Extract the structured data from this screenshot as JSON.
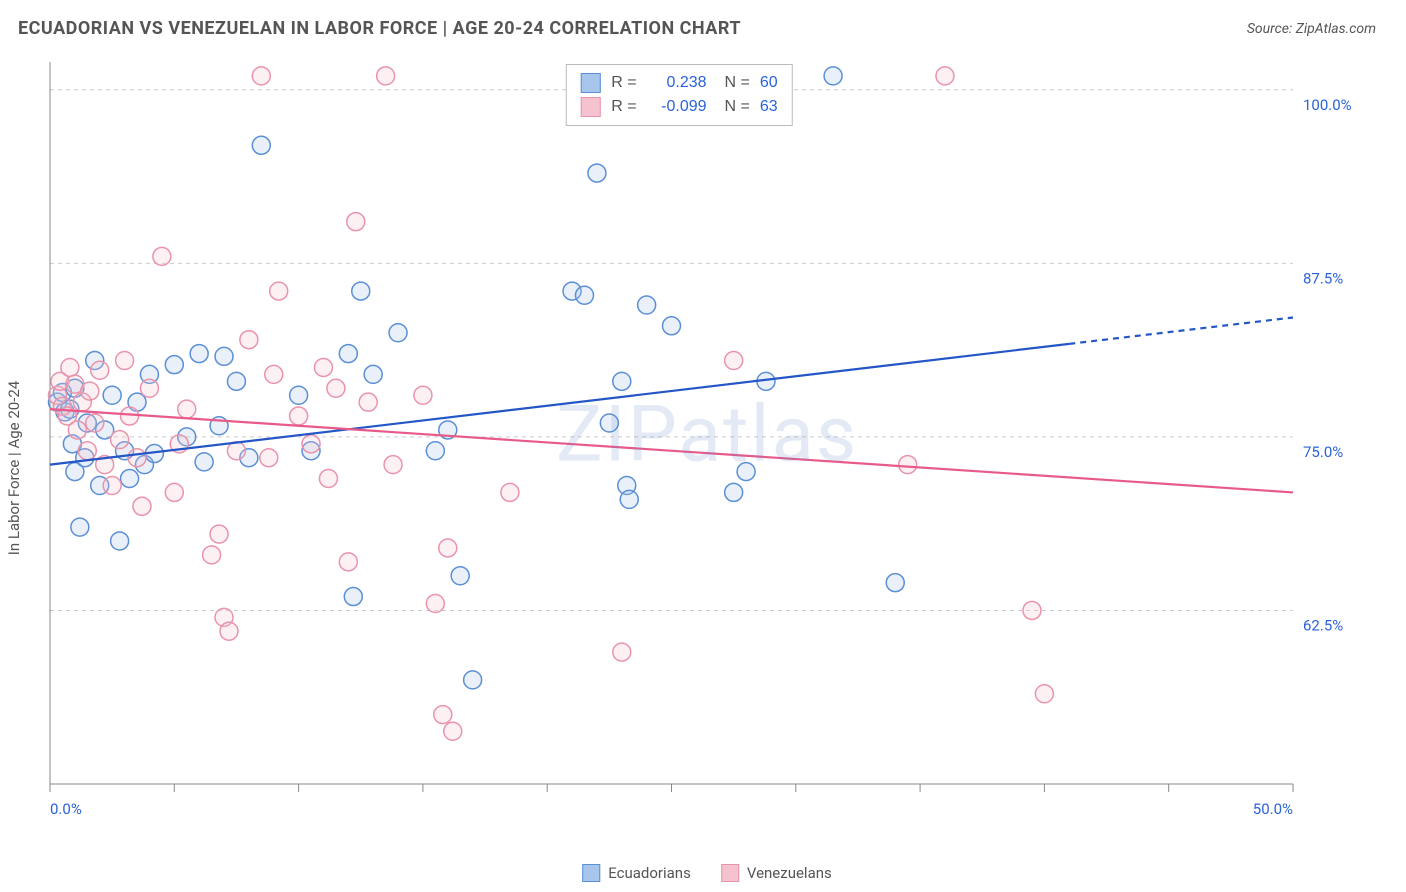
{
  "title": "ECUADORIAN VS VENEZUELAN IN LABOR FORCE | AGE 20-24 CORRELATION CHART",
  "source": "Source: ZipAtlas.com",
  "ylabel": "In Labor Force | Age 20-24",
  "watermark": "ZIPatlas",
  "chart": {
    "type": "scatter-correlation",
    "xlim": [
      0,
      50
    ],
    "ylim": [
      50,
      102
    ],
    "x_ticks": [
      0,
      5,
      10,
      15,
      20,
      25,
      30,
      35,
      40,
      45,
      50
    ],
    "x_tick_labels": {
      "0": "0.0%",
      "50": "50.0%"
    },
    "y_gridlines": [
      62.5,
      75.0,
      87.5,
      100.0
    ],
    "y_tick_labels": [
      "62.5%",
      "75.0%",
      "87.5%",
      "100.0%"
    ],
    "background_color": "#ffffff",
    "grid_color": "#cccccc",
    "axis_label_color": "#2962d9",
    "marker_radius": 9,
    "marker_stroke_width": 1.5,
    "marker_fill_opacity": 0.25,
    "line_width": 2.2,
    "series": [
      {
        "name": "Ecuadorians",
        "color_stroke": "#5b8fd6",
        "color_fill": "#a8c5eb",
        "line_color": "#2456c7",
        "R": "0.238",
        "N": "60",
        "trend": {
          "x1": 0,
          "y1": 73.0,
          "x2": 41,
          "y2": 81.7,
          "x_extend": 50,
          "y_extend": 83.6
        },
        "points": [
          [
            0.3,
            77.5
          ],
          [
            0.5,
            78.2
          ],
          [
            0.6,
            76.8
          ],
          [
            0.8,
            77.0
          ],
          [
            0.9,
            74.5
          ],
          [
            1.0,
            78.5
          ],
          [
            1.0,
            72.5
          ],
          [
            1.2,
            68.5
          ],
          [
            1.4,
            73.5
          ],
          [
            1.5,
            76.0
          ],
          [
            1.8,
            80.5
          ],
          [
            2.0,
            71.5
          ],
          [
            2.2,
            75.5
          ],
          [
            2.5,
            78.0
          ],
          [
            2.8,
            67.5
          ],
          [
            3.0,
            74.0
          ],
          [
            3.2,
            72.0
          ],
          [
            3.5,
            77.5
          ],
          [
            3.8,
            73.0
          ],
          [
            4.0,
            79.5
          ],
          [
            4.2,
            73.8
          ],
          [
            5.0,
            80.2
          ],
          [
            5.5,
            75.0
          ],
          [
            6.0,
            81.0
          ],
          [
            6.2,
            73.2
          ],
          [
            6.8,
            75.8
          ],
          [
            7.0,
            80.8
          ],
          [
            7.5,
            79.0
          ],
          [
            8.0,
            73.5
          ],
          [
            8.5,
            96.0
          ],
          [
            10.0,
            78.0
          ],
          [
            10.5,
            74.0
          ],
          [
            12.0,
            81.0
          ],
          [
            12.2,
            63.5
          ],
          [
            12.5,
            85.5
          ],
          [
            13.0,
            79.5
          ],
          [
            14.0,
            82.5
          ],
          [
            15.5,
            74.0
          ],
          [
            16.0,
            75.5
          ],
          [
            16.5,
            65.0
          ],
          [
            17.0,
            57.5
          ],
          [
            21.0,
            85.5
          ],
          [
            21.5,
            85.2
          ],
          [
            22.0,
            94.0
          ],
          [
            22.5,
            76.0
          ],
          [
            23.0,
            79.0
          ],
          [
            23.2,
            71.5
          ],
          [
            23.3,
            70.5
          ],
          [
            24.0,
            84.5
          ],
          [
            25.0,
            83.0
          ],
          [
            27.5,
            71.0
          ],
          [
            28.0,
            72.5
          ],
          [
            28.8,
            79.0
          ],
          [
            31.5,
            101.0
          ],
          [
            34.0,
            64.5
          ]
        ]
      },
      {
        "name": "Venezuelans",
        "color_stroke": "#e994ab",
        "color_fill": "#f5c2d0",
        "line_color": "#e85a8a",
        "R": "-0.099",
        "N": "63",
        "trend": {
          "x1": 0,
          "y1": 77.0,
          "x2": 50,
          "y2": 71.0
        },
        "points": [
          [
            0.3,
            78.0
          ],
          [
            0.4,
            79.0
          ],
          [
            0.5,
            77.2
          ],
          [
            0.7,
            76.5
          ],
          [
            0.8,
            80.0
          ],
          [
            1.0,
            78.8
          ],
          [
            1.1,
            75.5
          ],
          [
            1.3,
            77.5
          ],
          [
            1.5,
            74.0
          ],
          [
            1.6,
            78.3
          ],
          [
            1.8,
            76.0
          ],
          [
            2.0,
            79.8
          ],
          [
            2.2,
            73.0
          ],
          [
            2.5,
            71.5
          ],
          [
            2.8,
            74.8
          ],
          [
            3.0,
            80.5
          ],
          [
            3.2,
            76.5
          ],
          [
            3.5,
            73.5
          ],
          [
            3.7,
            70.0
          ],
          [
            4.0,
            78.5
          ],
          [
            4.5,
            88.0
          ],
          [
            5.0,
            71.0
          ],
          [
            5.2,
            74.5
          ],
          [
            5.5,
            77.0
          ],
          [
            6.5,
            66.5
          ],
          [
            6.8,
            68.0
          ],
          [
            7.0,
            62.0
          ],
          [
            7.2,
            61.0
          ],
          [
            7.5,
            74.0
          ],
          [
            8.0,
            82.0
          ],
          [
            8.5,
            101.0
          ],
          [
            8.8,
            73.5
          ],
          [
            9.0,
            79.5
          ],
          [
            9.2,
            85.5
          ],
          [
            10.0,
            76.5
          ],
          [
            10.5,
            74.5
          ],
          [
            11.0,
            80.0
          ],
          [
            11.2,
            72.0
          ],
          [
            11.5,
            78.5
          ],
          [
            12.0,
            66.0
          ],
          [
            12.3,
            90.5
          ],
          [
            12.8,
            77.5
          ],
          [
            13.5,
            101.0
          ],
          [
            13.8,
            73.0
          ],
          [
            15.0,
            78.0
          ],
          [
            15.5,
            63.0
          ],
          [
            15.8,
            55.0
          ],
          [
            16.0,
            67.0
          ],
          [
            16.2,
            53.8
          ],
          [
            18.5,
            71.0
          ],
          [
            23.0,
            59.5
          ],
          [
            27.5,
            80.5
          ],
          [
            34.5,
            73.0
          ],
          [
            36.0,
            101.0
          ],
          [
            39.5,
            62.5
          ],
          [
            40.0,
            56.5
          ]
        ]
      }
    ]
  },
  "legend": {
    "label0": "Ecuadorians",
    "label1": "Venezuelans"
  },
  "statbox": {
    "R_label": "R =",
    "N_label": "N ="
  }
}
